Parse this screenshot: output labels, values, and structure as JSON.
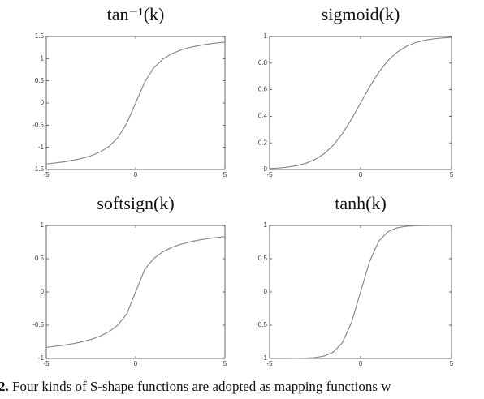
{
  "chart_data": [
    {
      "type": "line",
      "title": "tan⁻¹(k)",
      "x": [
        -5,
        -4.5,
        -4,
        -3.5,
        -3,
        -2.5,
        -2,
        -1.5,
        -1,
        -0.5,
        0,
        0.5,
        1,
        1.5,
        2,
        2.5,
        3,
        3.5,
        4,
        4.5,
        5
      ],
      "series": [
        {
          "color": "#8a8a8a",
          "values": [
            -1.373,
            -1.352,
            -1.326,
            -1.292,
            -1.249,
            -1.19,
            -1.107,
            -0.983,
            -0.785,
            -0.464,
            0,
            0.464,
            0.785,
            0.983,
            1.107,
            1.19,
            1.249,
            1.292,
            1.326,
            1.352,
            1.373
          ]
        }
      ],
      "xlim": [
        -5,
        5
      ],
      "xticks": [
        -5,
        0,
        5
      ],
      "ylim": [
        -1.5,
        1.5
      ],
      "yticks": [
        -1.5,
        -1,
        -0.5,
        0,
        0.5,
        1,
        1.5
      ]
    },
    {
      "type": "line",
      "title": "sigmoid(k)",
      "x": [
        -5,
        -4.5,
        -4,
        -3.5,
        -3,
        -2.5,
        -2,
        -1.5,
        -1,
        -0.5,
        0,
        0.5,
        1,
        1.5,
        2,
        2.5,
        3,
        3.5,
        4,
        4.5,
        5
      ],
      "series": [
        {
          "color": "#8a8a8a",
          "values": [
            0.007,
            0.011,
            0.018,
            0.029,
            0.047,
            0.076,
            0.119,
            0.182,
            0.269,
            0.378,
            0.5,
            0.622,
            0.731,
            0.818,
            0.881,
            0.924,
            0.953,
            0.971,
            0.982,
            0.989,
            0.993
          ]
        }
      ],
      "xlim": [
        -5,
        5
      ],
      "xticks": [
        -5,
        0,
        5
      ],
      "ylim": [
        0,
        1
      ],
      "yticks": [
        0,
        0.2,
        0.4,
        0.6,
        0.8,
        1
      ]
    },
    {
      "type": "line",
      "title": "softsign(k)",
      "x": [
        -5,
        -4.5,
        -4,
        -3.5,
        -3,
        -2.5,
        -2,
        -1.5,
        -1,
        -0.5,
        0,
        0.5,
        1,
        1.5,
        2,
        2.5,
        3,
        3.5,
        4,
        4.5,
        5
      ],
      "series": [
        {
          "color": "#8a8a8a",
          "values": [
            -0.833,
            -0.818,
            -0.8,
            -0.778,
            -0.75,
            -0.714,
            -0.667,
            -0.6,
            -0.5,
            -0.333,
            0,
            0.333,
            0.5,
            0.6,
            0.667,
            0.714,
            0.75,
            0.778,
            0.8,
            0.818,
            0.833
          ]
        }
      ],
      "xlim": [
        -5,
        5
      ],
      "xticks": [
        -5,
        0,
        5
      ],
      "ylim": [
        -1,
        1
      ],
      "yticks": [
        -1,
        -0.5,
        0,
        0.5,
        1
      ]
    },
    {
      "type": "line",
      "title": "tanh(k)",
      "x": [
        -5,
        -4.5,
        -4,
        -3.5,
        -3,
        -2.5,
        -2,
        -1.5,
        -1,
        -0.5,
        0,
        0.5,
        1,
        1.5,
        2,
        2.5,
        3,
        3.5,
        4,
        4.5,
        5
      ],
      "series": [
        {
          "color": "#8a8a8a",
          "values": [
            -1.0,
            -1.0,
            -0.999,
            -0.998,
            -0.995,
            -0.987,
            -0.964,
            -0.905,
            -0.762,
            -0.462,
            0,
            0.462,
            0.762,
            0.905,
            0.964,
            0.987,
            0.995,
            0.998,
            0.999,
            1.0,
            1.0
          ]
        }
      ],
      "xlim": [
        -5,
        5
      ],
      "xticks": [
        -5,
        0,
        5
      ],
      "ylim": [
        -1,
        1
      ],
      "yticks": [
        -1,
        -0.5,
        0,
        0.5,
        1
      ]
    }
  ],
  "caption": {
    "label": "2.",
    "text": "Four kinds of S-shape functions are adopted as mapping functions w"
  }
}
